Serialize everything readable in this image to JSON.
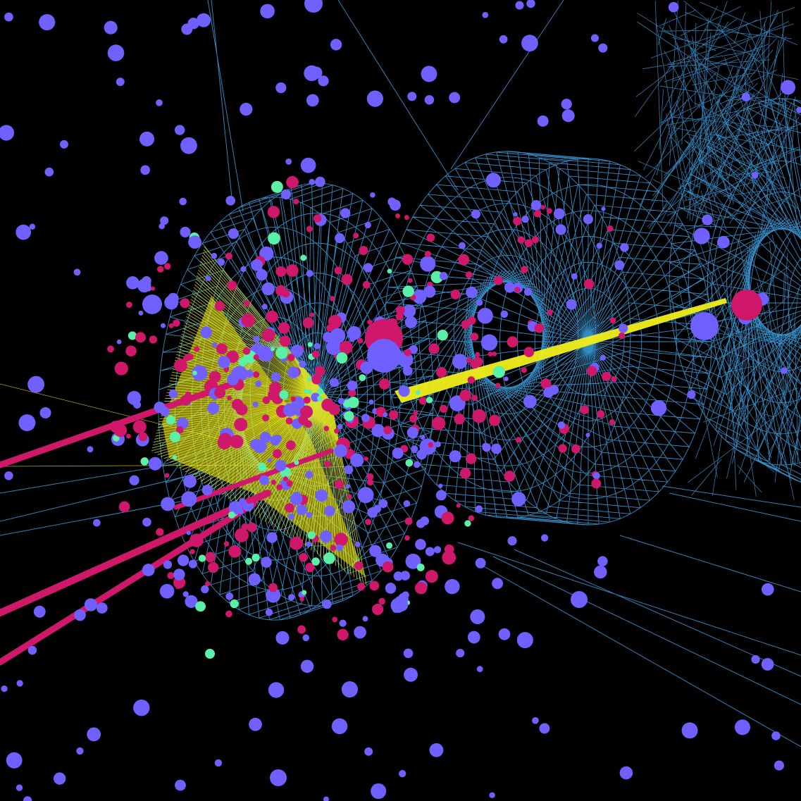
{
  "scene": {
    "description_free": true,
    "colors": {
      "background": "#000000",
      "wireframe": "#3a9ad9",
      "hit_violet": "#7060ff",
      "hit_magenta": "#d0186a",
      "hit_mint": "#5af0a8",
      "energy_yellow": "#f2ee1a"
    }
  }
}
